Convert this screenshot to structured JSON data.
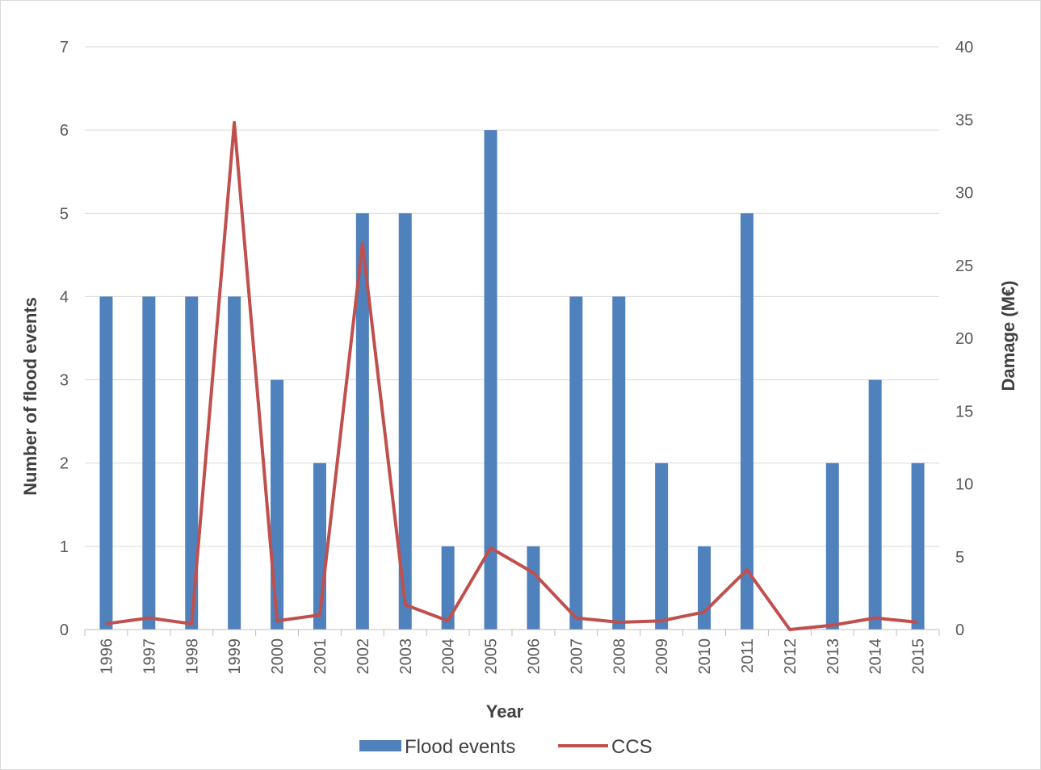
{
  "chart_data": {
    "type": "bar",
    "categories": [
      "1996",
      "1997",
      "1998",
      "1999",
      "2000",
      "2001",
      "2002",
      "2003",
      "2004",
      "2005",
      "2006",
      "2007",
      "2008",
      "2009",
      "2010",
      "2011",
      "2012",
      "2013",
      "2014",
      "2015"
    ],
    "xlabel": "Year",
    "ylabel": "Number of flood events",
    "y2label": "Damage (M€)",
    "ylim": [
      0,
      7
    ],
    "y2lim": [
      0,
      40
    ],
    "yticks": [
      "0",
      "1",
      "2",
      "3",
      "4",
      "5",
      "6",
      "7"
    ],
    "y2ticks": [
      "0",
      "5",
      "10",
      "15",
      "20",
      "25",
      "30",
      "35",
      "40"
    ],
    "grid": true,
    "legend_position": "bottom",
    "series": [
      {
        "name": "Flood events",
        "type": "bar",
        "axis": "left",
        "color": "#4f81bd",
        "values": [
          4,
          4,
          4,
          4,
          3,
          2,
          5,
          5,
          1,
          6,
          1,
          4,
          4,
          2,
          1,
          5,
          0,
          2,
          3,
          2
        ]
      },
      {
        "name": "CCS",
        "type": "line",
        "axis": "right",
        "color": "#c0504d",
        "values": [
          0.4,
          0.8,
          0.4,
          34.8,
          0.6,
          1.0,
          26.5,
          1.7,
          0.6,
          5.6,
          3.9,
          0.8,
          0.5,
          0.6,
          1.2,
          4.1,
          0.0,
          0.3,
          0.8,
          0.5
        ]
      }
    ]
  }
}
